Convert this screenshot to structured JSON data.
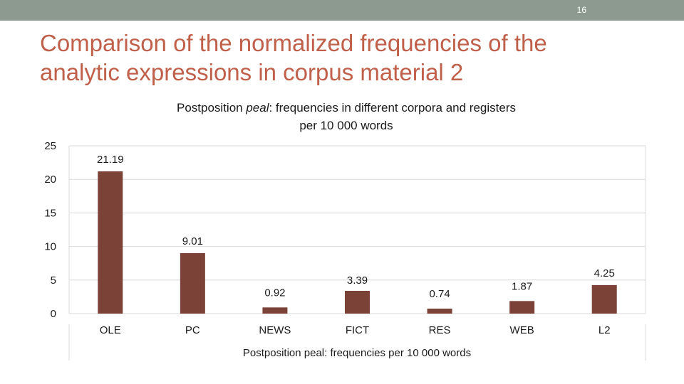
{
  "slide": {
    "page_number": "16",
    "title_line1": "Comparison of the normalized frequencies of the",
    "title_line2": "analytic expressions in corpus material 2"
  },
  "colors": {
    "top_bar": "#8c9a8f",
    "title": "#c0604a",
    "bar": "#7b4337",
    "grid": "#d9d9d9"
  },
  "chart_data": {
    "type": "bar",
    "title_prefix": "Postposition ",
    "title_italic": "peal",
    "title_suffix": ": frequencies in different corpora and registers",
    "title_line2": "per 10 000 words",
    "categories": [
      "OLE",
      "PC",
      "NEWS",
      "FICT",
      "RES",
      "WEB",
      "L2"
    ],
    "values": [
      21.19,
      9.01,
      0.92,
      3.39,
      0.74,
      1.87,
      4.25
    ],
    "data_labels": [
      "21.19",
      "9.01",
      "0.92",
      "3.39",
      "0.74",
      "1.87",
      "4.25"
    ],
    "xlabel": "Postposition peal: frequencies per 10 000 words",
    "ylabel": "",
    "ylim": [
      0,
      25
    ],
    "yticks": [
      0,
      5,
      10,
      15,
      20,
      25
    ],
    "grid": true,
    "legend": "none"
  }
}
